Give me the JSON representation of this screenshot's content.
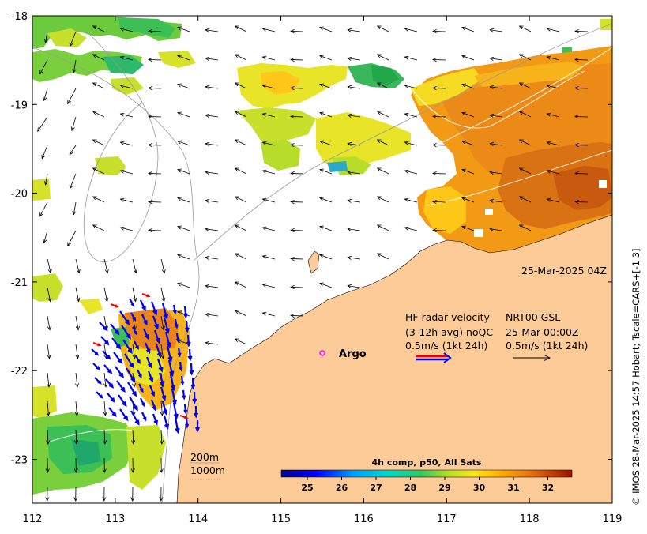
{
  "map": {
    "lon_ticks": [
      "112",
      "113",
      "114",
      "115",
      "116",
      "117",
      "118",
      "119"
    ],
    "lat_ticks": [
      "-18",
      "-19",
      "-20",
      "-21",
      "-22",
      "-23"
    ],
    "timestamp": "25-Mar-2025 04Z",
    "argo_label": "Argo",
    "hf_radar": {
      "line1_left": "HF radar velocity",
      "line1_right": "NRT00 GSL",
      "line2_left": "(3-12h avg) noQC",
      "line2_right": "25-Mar 00:00Z",
      "line3_left": "0.5m/s (1kt 24h)",
      "line3_right": "0.5m/s (1kt 24h)"
    },
    "contours": {
      "c200": "200m",
      "c1000": "1000m"
    },
    "colorbar": {
      "title": "4h comp, p50, All Sats",
      "ticks": [
        "25",
        "26",
        "27",
        "28",
        "29",
        "30",
        "31",
        "32"
      ]
    },
    "credit": "© IMOS 28-Mar-2025 14:57 Hobart; Tscale=CARS+[-1 3]",
    "colors": {
      "land": "#FDCB98",
      "radar_blue": "#0000EE",
      "radar_red": "#EE0000",
      "argo": "#FF00FF"
    }
  }
}
